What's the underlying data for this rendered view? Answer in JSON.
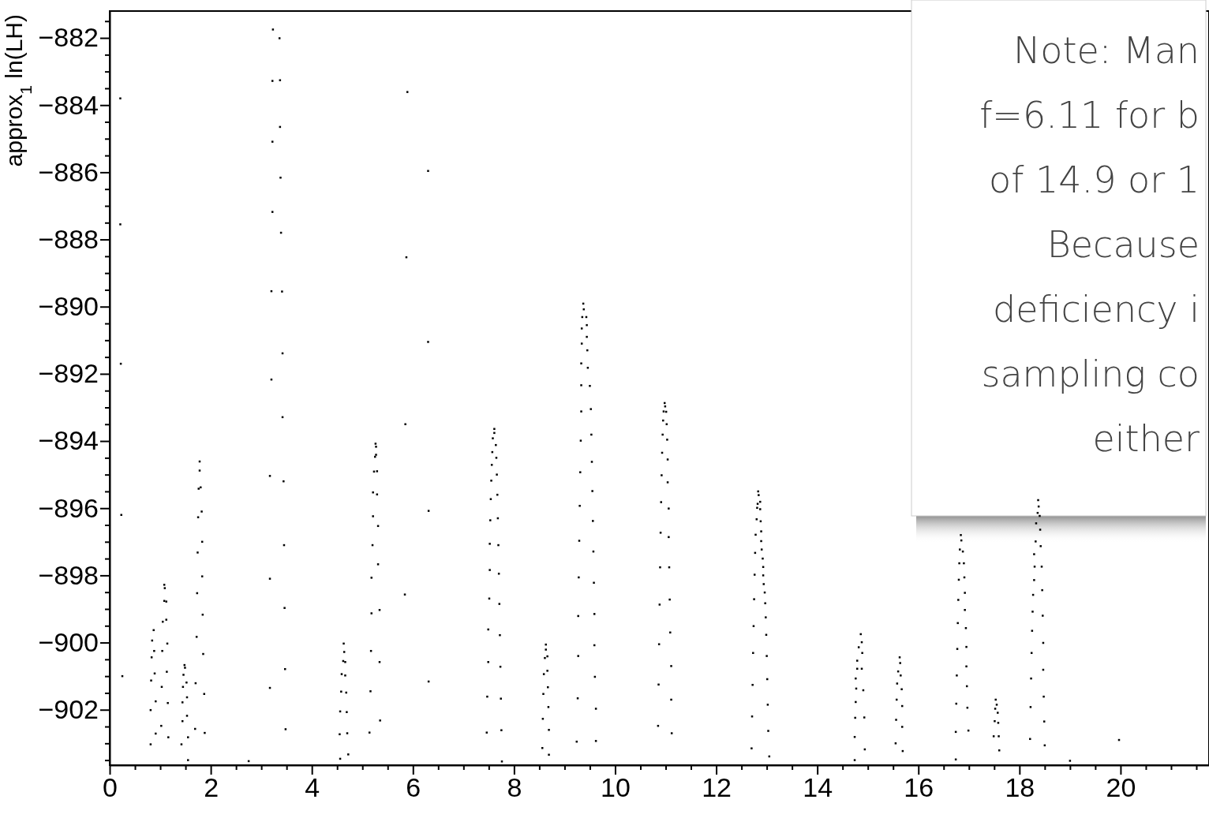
{
  "chart_data": {
    "type": "scatter",
    "ylabel": "approx$_{1}$ ln(LH)",
    "marker": "square",
    "grid": false,
    "xlim": [
      0,
      21.75
    ],
    "ylim": [
      -903.65,
      -881.2
    ],
    "xticks": [
      0,
      {
        "value": 0.5,
        "label": null
      },
      {
        "value": 1,
        "label": null
      },
      {
        "value": 1.5,
        "label": null
      },
      2,
      {
        "value": 2.5,
        "label": null
      },
      {
        "value": 3,
        "label": null
      },
      {
        "value": 3.5,
        "label": null
      },
      4,
      {
        "value": 4.5,
        "label": null
      },
      {
        "value": 5,
        "label": null
      },
      {
        "value": 5.5,
        "label": null
      },
      6,
      {
        "value": 6.5,
        "label": null
      },
      {
        "value": 7,
        "label": null
      },
      {
        "value": 7.5,
        "label": null
      },
      8,
      {
        "value": 8.5,
        "label": null
      },
      {
        "value": 9,
        "label": null
      },
      {
        "value": 9.5,
        "label": null
      },
      10,
      {
        "value": 10.5,
        "label": null
      },
      {
        "value": 11,
        "label": null
      },
      {
        "value": 11.5,
        "label": null
      },
      12,
      {
        "value": 12.5,
        "label": null
      },
      {
        "value": 13,
        "label": null
      },
      {
        "value": 13.5,
        "label": null
      },
      14,
      {
        "value": 14.5,
        "label": null
      },
      {
        "value": 15,
        "label": null
      },
      {
        "value": 15.5,
        "label": null
      },
      16,
      {
        "value": 16.5,
        "label": null
      },
      {
        "value": 17,
        "label": null
      },
      {
        "value": 17.5,
        "label": null
      },
      18,
      {
        "value": 18.5,
        "label": null
      },
      {
        "value": 19,
        "label": null
      },
      {
        "value": 19.5,
        "label": null
      },
      20,
      {
        "value": 20.5,
        "label": null
      },
      {
        "value": 21,
        "label": null
      },
      {
        "value": 21.5,
        "label": null
      }
    ],
    "yticks": [
      {
        "value": -903.5,
        "label": null
      },
      {
        "value": -903,
        "label": null
      },
      {
        "value": -902.5,
        "label": null
      },
      {
        "value": -902,
        "label": "−902"
      },
      {
        "value": -901.5,
        "label": null
      },
      {
        "value": -901,
        "label": null
      },
      {
        "value": -900.5,
        "label": null
      },
      {
        "value": -900,
        "label": "−900"
      },
      {
        "value": -899.5,
        "label": null
      },
      {
        "value": -899,
        "label": null
      },
      {
        "value": -898.5,
        "label": null
      },
      {
        "value": -898,
        "label": "−898"
      },
      {
        "value": -897.5,
        "label": null
      },
      {
        "value": -897,
        "label": null
      },
      {
        "value": -896.5,
        "label": null
      },
      {
        "value": -896,
        "label": "−896"
      },
      {
        "value": -895.5,
        "label": null
      },
      {
        "value": -895,
        "label": null
      },
      {
        "value": -894.5,
        "label": null
      },
      {
        "value": -894,
        "label": "−894"
      },
      {
        "value": -893.5,
        "label": null
      },
      {
        "value": -893,
        "label": null
      },
      {
        "value": -892.5,
        "label": null
      },
      {
        "value": -892,
        "label": "−892"
      },
      {
        "value": -891.5,
        "label": null
      },
      {
        "value": -891,
        "label": null
      },
      {
        "value": -890.5,
        "label": null
      },
      {
        "value": -890,
        "label": "−890"
      },
      {
        "value": -889.5,
        "label": null
      },
      {
        "value": -889,
        "label": null
      },
      {
        "value": -888.5,
        "label": null
      },
      {
        "value": -888,
        "label": "−888"
      },
      {
        "value": -887.5,
        "label": null
      },
      {
        "value": -887,
        "label": null
      },
      {
        "value": -886.5,
        "label": null
      },
      {
        "value": -886,
        "label": "−886"
      },
      {
        "value": -885.5,
        "label": null
      },
      {
        "value": -885,
        "label": null
      },
      {
        "value": -884.5,
        "label": null
      },
      {
        "value": -884,
        "label": "−884"
      },
      {
        "value": -883.5,
        "label": null
      },
      {
        "value": -883,
        "label": null
      },
      {
        "value": -882.5,
        "label": null
      },
      {
        "value": -882,
        "label": "−882"
      },
      {
        "value": -881.5,
        "label": null
      }
    ],
    "annotations": [
      "Note: Man\nf=6.11 for b\nof 14.9 or 1\nBecause\ndeficiency i\nsampling co\neither"
    ],
    "series": [
      {
        "color": "#000000",
        "x": [
          0.21,
          0.21,
          0.22,
          0.23,
          0.25,
          1.08,
          1.09,
          1.08,
          1.12,
          1.05,
          1.12,
          0.87,
          0.84,
          1.14,
          0.88,
          1.04,
          0.83,
          0.89,
          1.13,
          0.82,
          1.03,
          0.91,
          1.15,
          0.81,
          1.02,
          0.91,
          1.16,
          0.81,
          1.48,
          1.49,
          1.46,
          1.52,
          1.45,
          1.53,
          1.44,
          1.53,
          1.44,
          1.55,
          1.42,
          1.55,
          1.78,
          1.78,
          1.76,
          1.8,
          1.82,
          1.75,
          1.83,
          1.74,
          1.83,
          1.73,
          1.84,
          1.72,
          1.85,
          1.7,
          1.87,
          1.69,
          1.88,
          2.75,
          3.23,
          3.36,
          3.22,
          3.37,
          3.37,
          3.22,
          3.38,
          3.22,
          3.39,
          3.2,
          3.41,
          3.42,
          3.2,
          3.42,
          3.17,
          3.44,
          3.45,
          3.17,
          3.46,
          3.47,
          3.17,
          3.48,
          4.63,
          4.64,
          4.62,
          4.66,
          4.59,
          4.66,
          4.58,
          4.68,
          4.56,
          4.69,
          4.55,
          4.7,
          4.56,
          4.72,
          5.26,
          5.27,
          5.25,
          5.27,
          5.23,
          5.29,
          5.21,
          5.29,
          5.21,
          5.31,
          5.2,
          5.31,
          5.18,
          5.34,
          5.18,
          5.17,
          5.34,
          5.16,
          5.35,
          5.14,
          5.89,
          6.3,
          5.87,
          6.3,
          5.85,
          6.31,
          5.84,
          6.31,
          7.61,
          7.61,
          7.58,
          7.64,
          7.57,
          7.65,
          7.56,
          7.66,
          7.55,
          7.67,
          7.54,
          7.68,
          7.53,
          7.52,
          7.69,
          7.52,
          7.7,
          7.51,
          7.71,
          7.49,
          7.72,
          7.49,
          7.73,
          7.47,
          7.74,
          7.46,
          7.75,
          7.76,
          8.63,
          8.63,
          8.61,
          8.66,
          8.59,
          8.66,
          8.67,
          8.58,
          8.68,
          8.57,
          8.69,
          8.56,
          8.69,
          9.37,
          9.38,
          9.35,
          9.43,
          9.34,
          9.44,
          9.44,
          9.34,
          9.45,
          9.33,
          9.46,
          9.33,
          9.5,
          9.33,
          9.52,
          9.32,
          9.53,
          9.31,
          9.54,
          9.3,
          9.55,
          9.29,
          9.56,
          9.28,
          9.57,
          9.27,
          9.58,
          9.27,
          9.59,
          9.26,
          9.59,
          9.24,
          9.6,
          9.62,
          9.62,
          10.98,
          10.99,
          10.96,
          11.01,
          10.95,
          11.02,
          10.94,
          11.03,
          10.93,
          11.04,
          10.92,
          11.04,
          10.91,
          11.06,
          10.9,
          11.06,
          10.89,
          11.07,
          11.08,
          10.88,
          11.09,
          10.87,
          11.11,
          10.86,
          11.11,
          10.85,
          11.12,
          12.83,
          12.84,
          12.82,
          12.87,
          12.81,
          12.87,
          12.8,
          12.88,
          12.78,
          12.89,
          12.89,
          12.9,
          12.77,
          12.92,
          12.93,
          12.93,
          12.76,
          12.94,
          12.96,
          12.75,
          12.97,
          12.98,
          12.74,
          12.99,
          12.73,
          13.0,
          13.01,
          12.72,
          13.02,
          12.71,
          13.03,
          12.7,
          13.05,
          14.86,
          14.88,
          14.82,
          14.89,
          14.79,
          14.88,
          14.79,
          14.76,
          14.77,
          14.91,
          14.76,
          14.75,
          14.93,
          14.74,
          14.94,
          14.74,
          15.63,
          15.64,
          15.6,
          15.65,
          15.58,
          15.67,
          15.57,
          15.68,
          15.56,
          15.68,
          15.55,
          15.69,
          16.84,
          16.85,
          16.82,
          16.88,
          16.81,
          16.9,
          16.8,
          16.91,
          16.92,
          16.79,
          16.92,
          16.78,
          16.94,
          16.95,
          16.77,
          16.95,
          16.76,
          16.96,
          16.75,
          16.97,
          16.74,
          16.99,
          16.74,
          17.53,
          17.55,
          17.52,
          17.57,
          17.51,
          17.58,
          17.49,
          17.59,
          17.6,
          18.37,
          18.38,
          18.36,
          18.4,
          18.33,
          18.41,
          18.32,
          18.42,
          18.29,
          18.44,
          18.3,
          18.29,
          18.45,
          18.27,
          18.26,
          18.46,
          18.25,
          18.47,
          18.24,
          18.47,
          18.23,
          18.48,
          18.22,
          18.49,
          18.21,
          18.5,
          19.0,
          19.97
        ],
        "values": [
          -883.8,
          -887.55,
          -891.7,
          -896.2,
          -901.0,
          -898.28,
          -898.38,
          -898.76,
          -898.78,
          -899.38,
          -899.32,
          -899.63,
          -899.94,
          -900.03,
          -900.25,
          -900.25,
          -900.44,
          -900.92,
          -900.87,
          -901.13,
          -901.32,
          -901.75,
          -901.8,
          -902.01,
          -902.48,
          -902.71,
          -902.82,
          -903.03,
          -900.67,
          -900.75,
          -900.96,
          -901.19,
          -901.32,
          -901.63,
          -901.78,
          -902.18,
          -902.34,
          -902.82,
          -903.03,
          -903.5,
          -894.61,
          -894.88,
          -895.42,
          -895.38,
          -896.1,
          -896.27,
          -897.0,
          -897.32,
          -898.03,
          -898.53,
          -899.17,
          -899.83,
          -900.34,
          -901.21,
          -901.53,
          -902.57,
          -902.69,
          -903.53,
          -881.75,
          -882.01,
          -883.28,
          -883.26,
          -884.65,
          -885.09,
          -886.16,
          -887.18,
          -887.8,
          -889.54,
          -889.55,
          -891.39,
          -892.17,
          -893.29,
          -895.04,
          -895.2,
          -897.1,
          -898.1,
          -898.97,
          -900.79,
          -901.35,
          -902.58,
          -900.03,
          -900.28,
          -900.55,
          -900.58,
          -900.94,
          -900.98,
          -901.46,
          -901.49,
          -902.05,
          -902.07,
          -902.73,
          -902.7,
          -903.46,
          -903.33,
          -894.08,
          -894.17,
          -894.47,
          -894.41,
          -894.91,
          -894.9,
          -895.53,
          -895.59,
          -896.24,
          -896.53,
          -897.1,
          -897.67,
          -898.07,
          -899.03,
          -899.13,
          -900.25,
          -900.58,
          -901.45,
          -902.32,
          -902.68,
          -883.61,
          -885.96,
          -888.53,
          -891.05,
          -893.5,
          -896.08,
          -898.57,
          -901.16,
          -893.64,
          -893.76,
          -893.92,
          -894.12,
          -894.33,
          -894.5,
          -894.71,
          -895.0,
          -895.18,
          -895.6,
          -895.73,
          -896.3,
          -896.36,
          -897.06,
          -897.1,
          -897.84,
          -897.95,
          -898.69,
          -898.85,
          -899.61,
          -899.78,
          -900.58,
          -900.72,
          -901.61,
          -901.67,
          -902.68,
          -902.61,
          -903.54,
          -900.06,
          -900.21,
          -900.46,
          -900.41,
          -900.94,
          -900.84,
          -901.33,
          -901.53,
          -901.92,
          -902.27,
          -902.6,
          -903.14,
          -903.34,
          -889.91,
          -890.08,
          -890.31,
          -890.31,
          -890.65,
          -890.55,
          -890.9,
          -891.1,
          -891.3,
          -891.69,
          -891.82,
          -892.34,
          -892.36,
          -893.12,
          -893.05,
          -893.99,
          -893.81,
          -894.93,
          -894.62,
          -895.93,
          -895.49,
          -896.97,
          -896.38,
          -898.06,
          -897.29,
          -899.21,
          -898.22,
          -900.4,
          -899.15,
          -901.66,
          -900.08,
          -902.95,
          -901.02,
          -901.97,
          -902.93,
          -892.87,
          -892.97,
          -893.12,
          -893.13,
          -893.39,
          -893.5,
          -893.81,
          -893.96,
          -894.35,
          -894.55,
          -895.02,
          -895.23,
          -895.82,
          -896.01,
          -896.73,
          -896.86,
          -897.76,
          -897.76,
          -898.72,
          -898.87,
          -899.7,
          -900.05,
          -900.7,
          -901.25,
          -901.7,
          -902.48,
          -902.7,
          -895.5,
          -895.61,
          -895.87,
          -895.81,
          -895.99,
          -896.03,
          -896.33,
          -896.39,
          -896.79,
          -896.69,
          -896.98,
          -897.23,
          -897.33,
          -897.5,
          -897.75,
          -898.0,
          -897.98,
          -898.26,
          -898.51,
          -898.71,
          -898.83,
          -899.25,
          -899.51,
          -899.77,
          -900.31,
          -900.4,
          -901.09,
          -901.26,
          -901.85,
          -902.2,
          -902.63,
          -903.15,
          -903.39,
          -899.75,
          -899.99,
          -900.14,
          -900.31,
          -900.54,
          -900.78,
          -900.78,
          -901.07,
          -901.37,
          -901.42,
          -901.77,
          -902.24,
          -902.23,
          -902.81,
          -903.18,
          -903.5,
          -900.44,
          -900.61,
          -900.86,
          -900.98,
          -901.22,
          -901.39,
          -901.7,
          -901.89,
          -902.3,
          -902.51,
          -903.0,
          -903.23,
          -896.8,
          -896.96,
          -897.23,
          -897.29,
          -897.64,
          -897.64,
          -898.13,
          -898.06,
          -898.52,
          -898.73,
          -899.03,
          -899.42,
          -899.57,
          -900.13,
          -900.19,
          -900.71,
          -900.98,
          -901.3,
          -901.82,
          -901.94,
          -902.66,
          -902.62,
          -903.48,
          -901.7,
          -901.85,
          -901.97,
          -902.09,
          -902.34,
          -902.39,
          -902.79,
          -902.79,
          -903.21,
          -895.76,
          -895.95,
          -896.14,
          -896.23,
          -896.45,
          -896.64,
          -896.99,
          -897.13,
          -897.37,
          -897.74,
          -897.74,
          -898.14,
          -898.44,
          -898.58,
          -899.08,
          -899.2,
          -899.65,
          -900.01,
          -900.31,
          -900.81,
          -901.07,
          -901.61,
          -901.92,
          -902.35,
          -902.87,
          -903.06,
          -903.52,
          -902.9
        ]
      }
    ]
  }
}
